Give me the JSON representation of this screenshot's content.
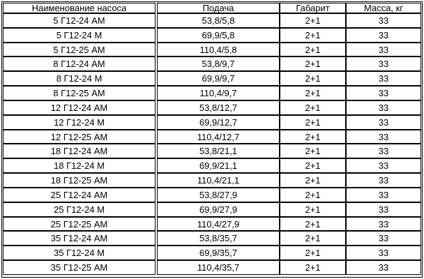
{
  "table": {
    "headers": {
      "name": "Наименование насоса",
      "podacha": "Подача",
      "gabarit": "Габарит",
      "massa_prefix": "Масса, ",
      "massa_unit": "кг"
    },
    "rows": [
      {
        "name": "5 Г12-24 АМ",
        "podacha": "53,8/5,8",
        "gabarit": "2+1",
        "massa": "33"
      },
      {
        "name": "5 Г12-24 М",
        "podacha": "69,9/5,8",
        "gabarit": "2+1",
        "massa": "33"
      },
      {
        "name": "5 Г12-25 АМ",
        "podacha": "110,4/5,8",
        "gabarit": "2+1",
        "massa": "33"
      },
      {
        "name": "8 Г12-24 АМ",
        "podacha": "53,8/9,7",
        "gabarit": "2+1",
        "massa": "33"
      },
      {
        "name": "8 Г12-24 М",
        "podacha": "69,9/9,7",
        "gabarit": "2+1",
        "massa": "33"
      },
      {
        "name": "8 Г12-25 АМ",
        "podacha": "110,4/9,7",
        "gabarit": "2+1",
        "massa": "33"
      },
      {
        "name": "12 Г12-24 АМ",
        "podacha": "53,8/12,7",
        "gabarit": "2+1",
        "massa": "33"
      },
      {
        "name": "12 Г12-24 М",
        "podacha": "69,9/12,7",
        "gabarit": "2+1",
        "massa": "33"
      },
      {
        "name": "12 Г12-25 АМ",
        "podacha": "110,4/12,7",
        "gabarit": "2+1",
        "massa": "33"
      },
      {
        "name": "18 Г12-24 АМ",
        "podacha": "53,8/21,1",
        "gabarit": "2+1",
        "massa": "33"
      },
      {
        "name": "18 Г12-24 М",
        "podacha": "69,9/21,1",
        "gabarit": "2+1",
        "massa": "33"
      },
      {
        "name": "18 Г12-25 АМ",
        "podacha": "110,4/21,1",
        "gabarit": "2+1",
        "massa": "33"
      },
      {
        "name": "25 Г12-24 АМ",
        "podacha": "53,8/27,9",
        "gabarit": "2+1",
        "massa": "33"
      },
      {
        "name": "25 Г12-24 М",
        "podacha": "69,9/27,9",
        "gabarit": "2+1",
        "massa": "33"
      },
      {
        "name": "25 Г12-25 АМ",
        "podacha": "110,4/27,9",
        "gabarit": "2+1",
        "massa": "33"
      },
      {
        "name": "35 Г12-24 АМ",
        "podacha": "53,8/35,7",
        "gabarit": "2+1",
        "massa": "33"
      },
      {
        "name": "35 Г12-24 М",
        "podacha": "69,9/35,7",
        "gabarit": "2+1",
        "massa": "33"
      },
      {
        "name": "35 Г12-25 АМ",
        "podacha": "110,4/35,7",
        "gabarit": "2+1",
        "massa": "33"
      }
    ]
  },
  "colors": {
    "border": "#000000",
    "background": "#ffffff",
    "spellcheck_underline": "#00a000"
  }
}
